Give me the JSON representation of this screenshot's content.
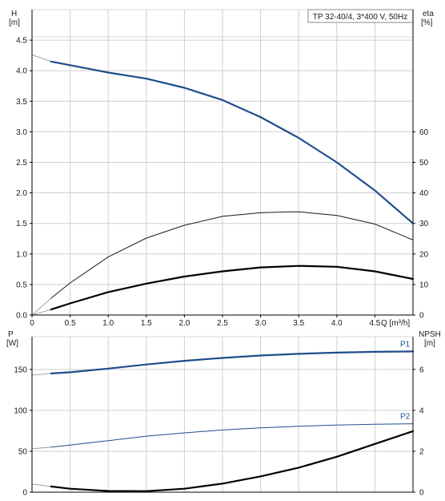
{
  "chart_data": [
    {
      "type": "line",
      "title": "TP 32-40/4, 3*400 V, 50Hz",
      "xlabel": "Q [m³/h]",
      "xlim": [
        0,
        5.0
      ],
      "x_ticks": [
        "0",
        "0.5",
        "1.0",
        "1.5",
        "2.0",
        "2.5",
        "3.0",
        "3.5",
        "4.0",
        "4.5"
      ],
      "left_axis": {
        "label_line1": "H",
        "label_line2": "[m]",
        "ylim": [
          0,
          5.0
        ],
        "ticks": [
          "0.0",
          "0.5",
          "1.0",
          "1.5",
          "2.0",
          "2.5",
          "3.0",
          "3.5",
          "4.0",
          "4.5"
        ]
      },
      "right_axis": {
        "label_line1": "eta",
        "label_line2": "[%]",
        "ylim": [
          0,
          100
        ],
        "ticks": [
          "0",
          "10",
          "20",
          "30",
          "40",
          "50",
          "60"
        ]
      },
      "grid": true,
      "series": [
        {
          "axis": "left",
          "color": "#1f4e8c",
          "width": 2.2,
          "x": [
            0,
            0.25,
            0.5,
            1.0,
            1.5,
            2.0,
            2.5,
            3.0,
            3.5,
            4.0,
            4.5,
            5.0
          ],
          "values": [
            4.26,
            4.15,
            4.09,
            3.97,
            3.87,
            3.72,
            3.52,
            3.24,
            2.9,
            2.5,
            2.04,
            1.5
          ],
          "extrap_until": 0.25
        },
        {
          "axis": "right",
          "color": "#1a1a1a",
          "width": 1.0,
          "x": [
            0,
            0.25,
            0.5,
            1.0,
            1.5,
            2.0,
            2.5,
            3.0,
            3.4,
            3.5,
            4.0,
            4.5,
            5.0
          ],
          "values": [
            0,
            5.5,
            10.5,
            19,
            25.2,
            29.4,
            32.3,
            33.5,
            33.8,
            33.8,
            32.6,
            29.8,
            24.6
          ],
          "extrap_until": 0.25
        },
        {
          "axis": "right",
          "color": "#000000",
          "width": 2.2,
          "x": [
            0,
            0.25,
            0.5,
            1.0,
            1.5,
            2.0,
            2.5,
            3.0,
            3.5,
            4.0,
            4.5,
            5.0
          ],
          "values": [
            0,
            1.8,
            3.8,
            7.5,
            10.3,
            12.6,
            14.3,
            15.6,
            16.1,
            15.8,
            14.3,
            11.8
          ],
          "extrap_until": 0.25
        }
      ]
    },
    {
      "type": "line",
      "xlim": [
        0,
        5.0
      ],
      "left_axis": {
        "label_line1": "P",
        "label_line2": "[W]",
        "ylim": [
          0,
          190
        ],
        "ticks": [
          "0",
          "50",
          "100",
          "150"
        ]
      },
      "right_axis": {
        "label_line1": "NPSH",
        "label_line2": "[m]",
        "ylim": [
          0,
          7.6
        ],
        "ticks": [
          "0",
          "2",
          "4",
          "6"
        ]
      },
      "grid": true,
      "series": [
        {
          "name": "P1",
          "axis": "left",
          "color": "#1f4e8c",
          "width": 2.2,
          "x": [
            0,
            0.25,
            0.5,
            1.0,
            1.5,
            2.0,
            2.5,
            3.0,
            3.5,
            4.0,
            4.5,
            5.0
          ],
          "values": [
            143,
            145,
            146.5,
            151,
            156,
            160.5,
            164,
            167,
            169,
            170.5,
            171.5,
            172
          ],
          "extrap_until": 0.25
        },
        {
          "name": "P2",
          "axis": "left",
          "color": "#1f4e8c",
          "width": 1.0,
          "x": [
            0,
            0.25,
            0.5,
            1.0,
            1.5,
            2.0,
            2.5,
            3.0,
            3.5,
            4.0,
            4.5,
            5.0
          ],
          "values": [
            53,
            55,
            57.5,
            63,
            68.5,
            72.5,
            76,
            78.5,
            80.5,
            82,
            83,
            83.5
          ],
          "extrap_until": 0.25
        },
        {
          "axis": "right",
          "color": "#000000",
          "width": 2.2,
          "x": [
            0,
            0.25,
            0.5,
            1.0,
            1.5,
            2.0,
            2.5,
            3.0,
            3.5,
            4.0,
            4.5,
            5.0
          ],
          "values": [
            0.4,
            0.28,
            0.17,
            0.06,
            0.05,
            0.17,
            0.42,
            0.77,
            1.2,
            1.73,
            2.36,
            2.98
          ],
          "extrap_until": 0.25
        }
      ]
    }
  ]
}
